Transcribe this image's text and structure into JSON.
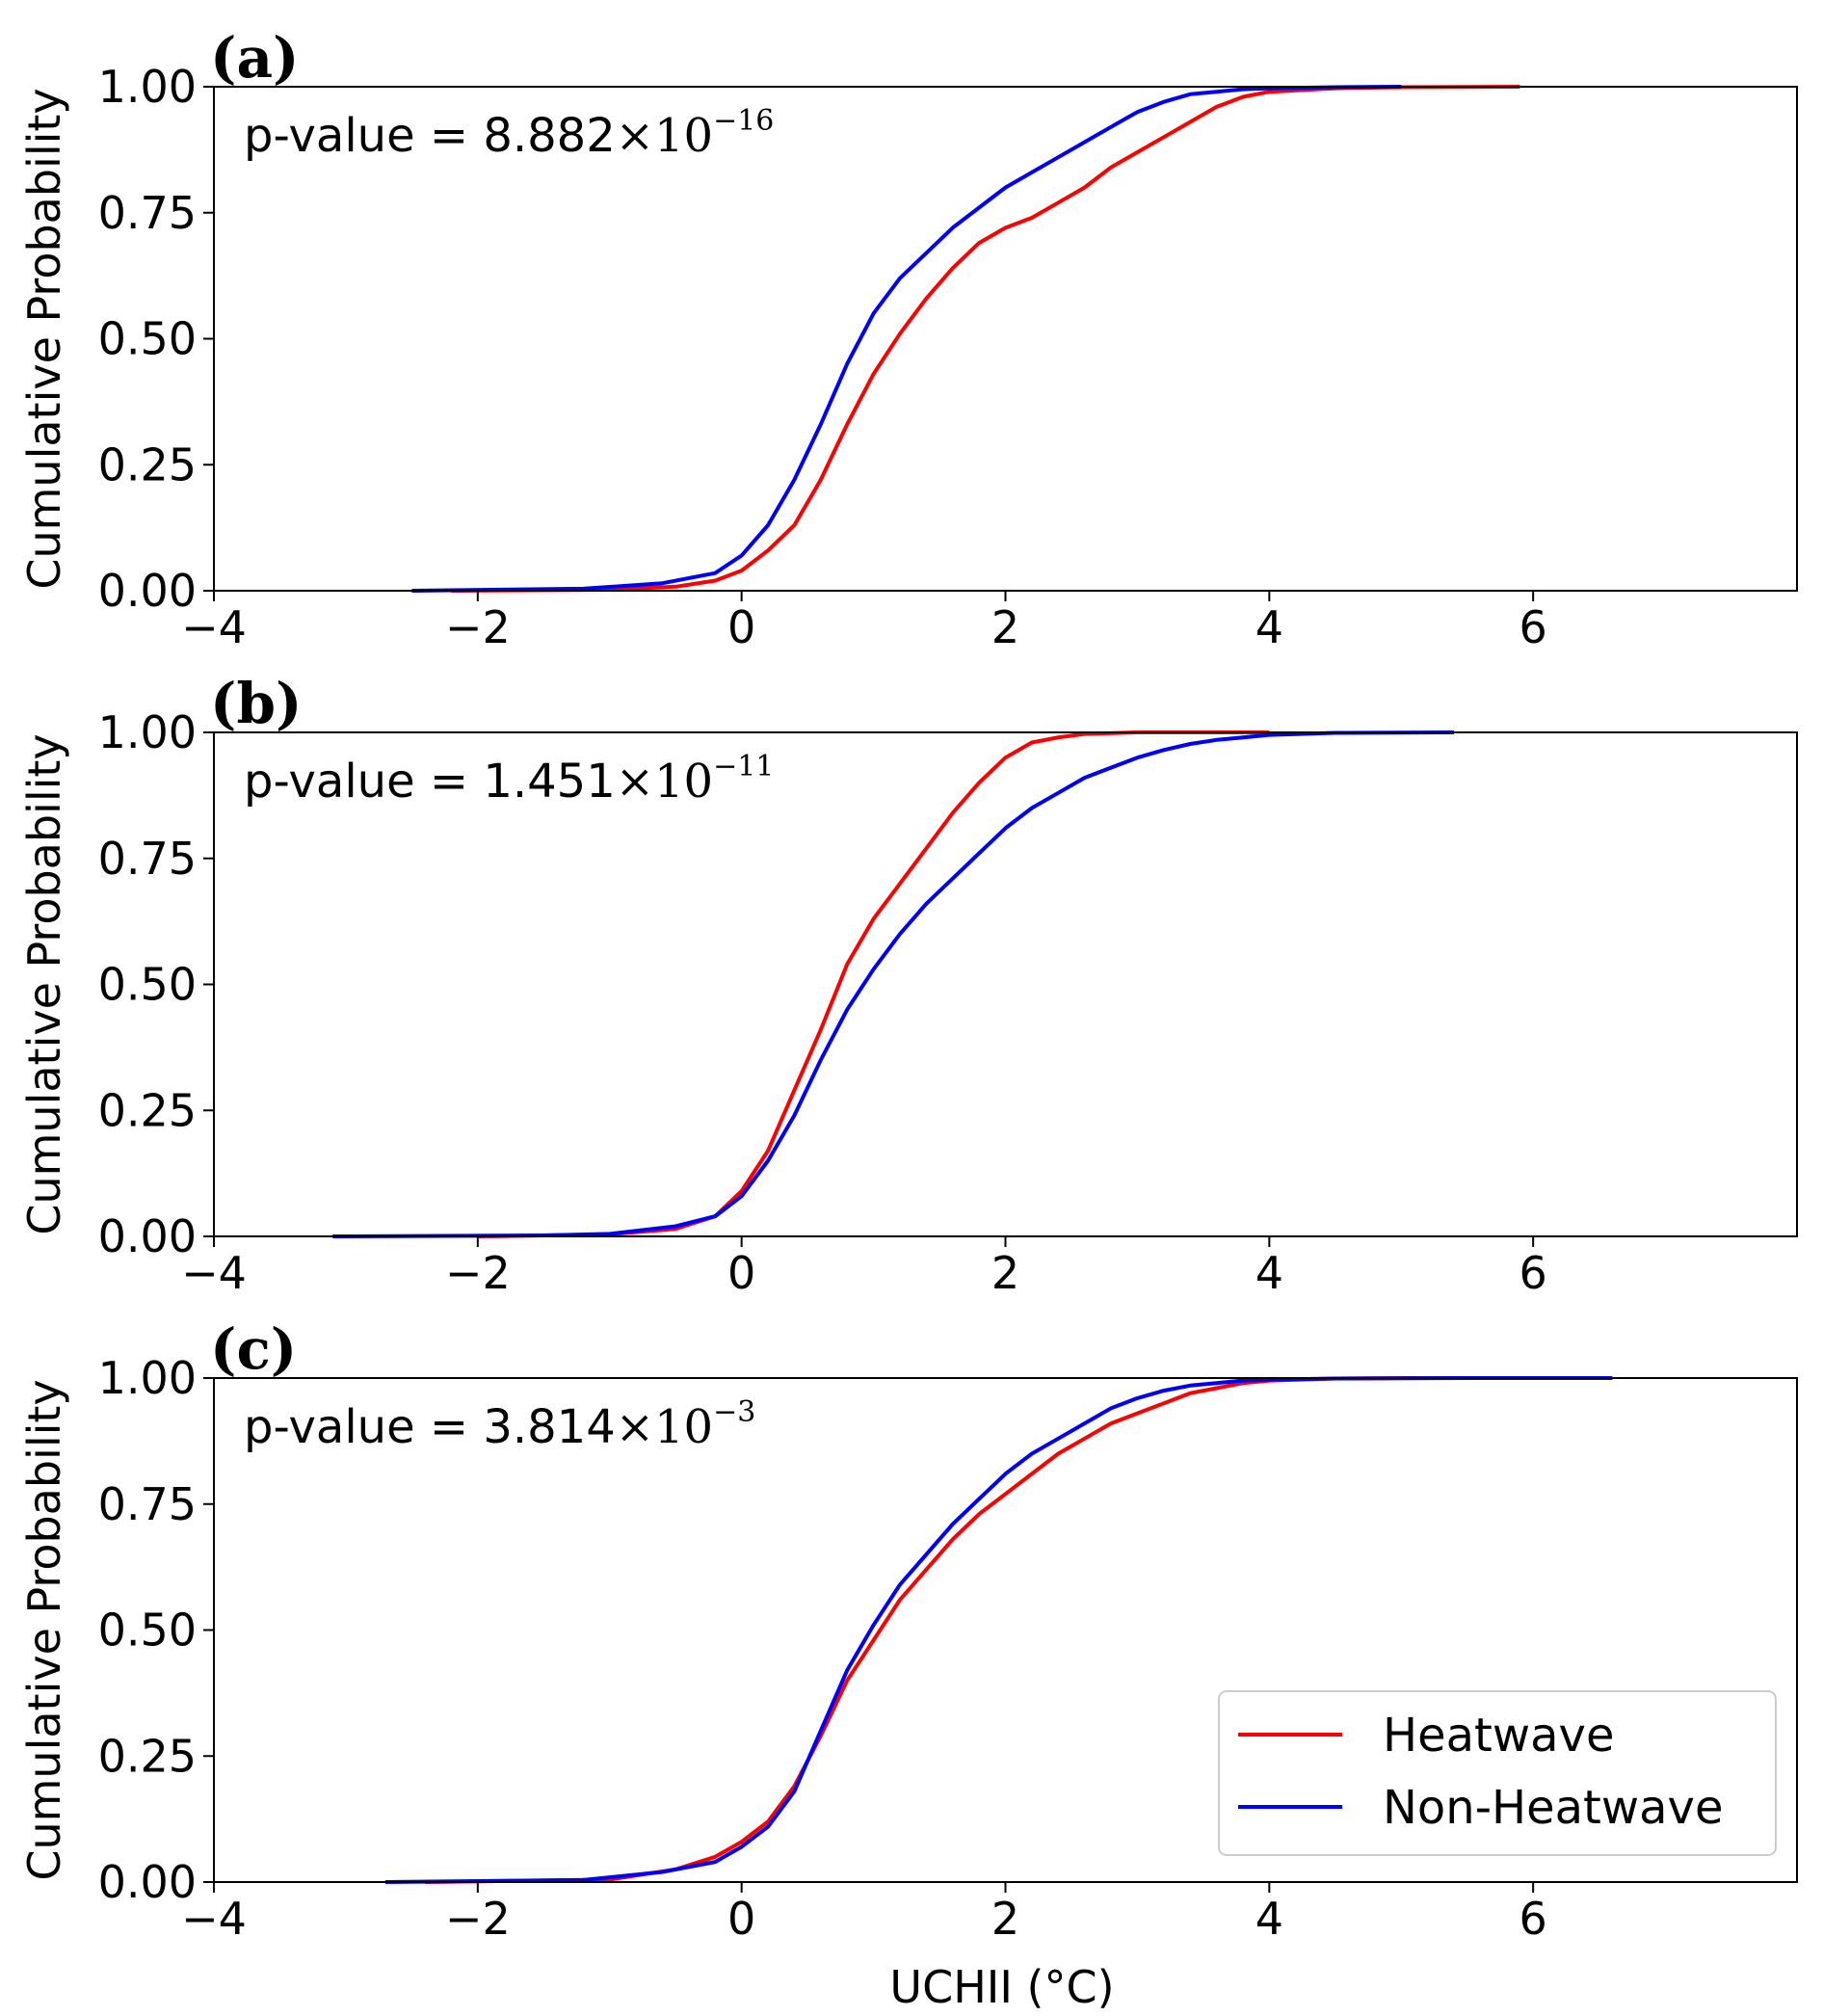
{
  "figure": {
    "xlabel": "UCHII (°C)",
    "ylabel": "Cumulative Probability",
    "xlim": [
      -4,
      8
    ],
    "ylim": [
      0,
      1
    ],
    "xticks": [
      -4,
      -2,
      0,
      2,
      4,
      6
    ],
    "xtick_labels": [
      "−4",
      "−2",
      "0",
      "2",
      "4",
      "6"
    ],
    "yticks": [
      0,
      0.25,
      0.5,
      0.75,
      1
    ],
    "ytick_labels": [
      "0.00",
      "0.25",
      "0.50",
      "0.75",
      "1.00"
    ],
    "colors": {
      "heatwave": "#ff0000",
      "non_heatwave": "#0000ff",
      "axis": "#000000"
    },
    "legend": {
      "location": "lower-right",
      "labels": [
        "Heatwave",
        "Non-Heatwave"
      ]
    }
  },
  "chart_data": [
    {
      "type": "line",
      "panel_label": "(a)",
      "annotation": {
        "prefix": "p-value = ",
        "mantissa": "8.882",
        "times": "×10",
        "exponent": "−16"
      },
      "xlabel": "",
      "ylabel": "Cumulative Probability",
      "xlim": [
        -4,
        8
      ],
      "ylim": [
        0,
        1
      ],
      "series": [
        {
          "name": "Heatwave",
          "color": "#ff0000",
          "x": [
            -2.2,
            -1.0,
            -0.5,
            -0.2,
            0.0,
            0.2,
            0.4,
            0.6,
            0.8,
            1.0,
            1.2,
            1.4,
            1.6,
            1.8,
            2.0,
            2.2,
            2.4,
            2.6,
            2.8,
            3.0,
            3.2,
            3.4,
            3.6,
            3.8,
            4.0,
            4.5,
            5.0,
            5.9
          ],
          "y": [
            0.0,
            0.002,
            0.008,
            0.02,
            0.04,
            0.08,
            0.13,
            0.22,
            0.33,
            0.43,
            0.51,
            0.58,
            0.64,
            0.69,
            0.72,
            0.74,
            0.77,
            0.8,
            0.84,
            0.87,
            0.9,
            0.93,
            0.96,
            0.98,
            0.99,
            0.997,
            0.999,
            1.0
          ]
        },
        {
          "name": "Non-Heatwave",
          "color": "#0000ff",
          "x": [
            -2.5,
            -1.2,
            -0.6,
            -0.2,
            0.0,
            0.2,
            0.4,
            0.6,
            0.8,
            1.0,
            1.2,
            1.4,
            1.6,
            1.8,
            2.0,
            2.2,
            2.4,
            2.6,
            2.8,
            3.0,
            3.2,
            3.4,
            3.6,
            3.8,
            4.0,
            4.5,
            5.0
          ],
          "y": [
            0.0,
            0.004,
            0.015,
            0.035,
            0.07,
            0.13,
            0.22,
            0.33,
            0.45,
            0.55,
            0.62,
            0.67,
            0.72,
            0.76,
            0.8,
            0.83,
            0.86,
            0.89,
            0.92,
            0.95,
            0.97,
            0.985,
            0.99,
            0.995,
            0.997,
            0.999,
            1.0
          ]
        }
      ]
    },
    {
      "type": "line",
      "panel_label": "(b)",
      "annotation": {
        "prefix": "p-value = ",
        "mantissa": "1.451",
        "times": "×10",
        "exponent": "−11"
      },
      "xlabel": "",
      "ylabel": "Cumulative Probability",
      "xlim": [
        -4,
        8
      ],
      "ylim": [
        0,
        1
      ],
      "series": [
        {
          "name": "Heatwave",
          "color": "#ff0000",
          "x": [
            -2.0,
            -1.0,
            -0.5,
            -0.2,
            0.0,
            0.2,
            0.4,
            0.6,
            0.8,
            1.0,
            1.2,
            1.4,
            1.6,
            1.8,
            2.0,
            2.2,
            2.4,
            2.6,
            3.0,
            4.0
          ],
          "y": [
            0.0,
            0.004,
            0.015,
            0.04,
            0.09,
            0.17,
            0.29,
            0.41,
            0.54,
            0.63,
            0.7,
            0.77,
            0.84,
            0.9,
            0.95,
            0.98,
            0.99,
            0.997,
            1.0,
            1.0
          ]
        },
        {
          "name": "Non-Heatwave",
          "color": "#0000ff",
          "x": [
            -3.1,
            -1.5,
            -1.0,
            -0.5,
            -0.2,
            0.0,
            0.2,
            0.4,
            0.6,
            0.8,
            1.0,
            1.2,
            1.4,
            1.6,
            1.8,
            2.0,
            2.2,
            2.4,
            2.6,
            2.8,
            3.0,
            3.2,
            3.4,
            3.6,
            3.8,
            4.0,
            4.5,
            5.4
          ],
          "y": [
            0.0,
            0.002,
            0.005,
            0.02,
            0.04,
            0.08,
            0.15,
            0.24,
            0.35,
            0.45,
            0.53,
            0.6,
            0.66,
            0.71,
            0.76,
            0.81,
            0.85,
            0.88,
            0.91,
            0.93,
            0.95,
            0.965,
            0.977,
            0.985,
            0.99,
            0.995,
            0.999,
            1.0
          ]
        }
      ]
    },
    {
      "type": "line",
      "panel_label": "(c)",
      "annotation": {
        "prefix": "p-value = ",
        "mantissa": "3.814",
        "times": "×10",
        "exponent": "−3"
      },
      "xlabel": "UCHII (°C)",
      "ylabel": "Cumulative Probability",
      "xlim": [
        -4,
        8
      ],
      "ylim": [
        0,
        1
      ],
      "legend": [
        "Heatwave",
        "Non-Heatwave"
      ],
      "series": [
        {
          "name": "Heatwave",
          "color": "#ff0000",
          "x": [
            -2.4,
            -1.0,
            -0.5,
            -0.2,
            0.0,
            0.2,
            0.4,
            0.6,
            0.8,
            1.0,
            1.2,
            1.4,
            1.6,
            1.8,
            2.0,
            2.2,
            2.4,
            2.6,
            2.8,
            3.0,
            3.2,
            3.4,
            3.6,
            3.8,
            4.0,
            4.5,
            5.0,
            6.0
          ],
          "y": [
            0.0,
            0.005,
            0.025,
            0.05,
            0.08,
            0.12,
            0.19,
            0.29,
            0.4,
            0.48,
            0.56,
            0.62,
            0.68,
            0.73,
            0.77,
            0.81,
            0.85,
            0.88,
            0.91,
            0.93,
            0.95,
            0.97,
            0.98,
            0.99,
            0.995,
            0.999,
            1.0,
            1.0
          ]
        },
        {
          "name": "Non-Heatwave",
          "color": "#0000ff",
          "x": [
            -2.7,
            -1.2,
            -0.6,
            -0.2,
            0.0,
            0.2,
            0.4,
            0.6,
            0.8,
            1.0,
            1.2,
            1.4,
            1.6,
            1.8,
            2.0,
            2.2,
            2.4,
            2.6,
            2.8,
            3.0,
            3.2,
            3.4,
            3.6,
            3.8,
            4.0,
            4.5,
            5.5,
            6.6
          ],
          "y": [
            0.0,
            0.004,
            0.02,
            0.04,
            0.07,
            0.11,
            0.18,
            0.3,
            0.42,
            0.51,
            0.59,
            0.65,
            0.71,
            0.76,
            0.81,
            0.85,
            0.88,
            0.91,
            0.94,
            0.96,
            0.975,
            0.985,
            0.99,
            0.995,
            0.997,
            0.999,
            1.0,
            1.0
          ]
        }
      ]
    }
  ]
}
